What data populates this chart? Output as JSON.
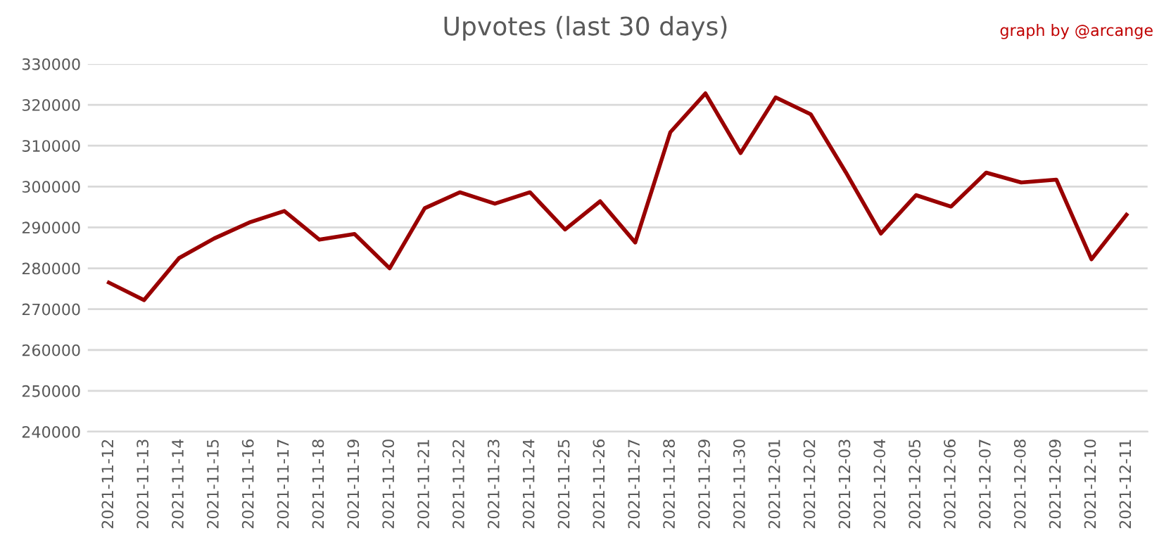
{
  "chart_data": {
    "type": "line",
    "title": "Upvotes (last 30 days)",
    "annotations": [
      "graph by @arcange"
    ],
    "categories": [
      "2021-11-12",
      "2021-11-13",
      "2021-11-14",
      "2021-11-15",
      "2021-11-16",
      "2021-11-17",
      "2021-11-18",
      "2021-11-19",
      "2021-11-20",
      "2021-11-21",
      "2021-11-22",
      "2021-11-23",
      "2021-11-24",
      "2021-11-25",
      "2021-11-26",
      "2021-11-27",
      "2021-11-28",
      "2021-11-29",
      "2021-11-30",
      "2021-12-01",
      "2021-12-02",
      "2021-12-03",
      "2021-12-04",
      "2021-12-05",
      "2021-12-06",
      "2021-12-07",
      "2021-12-08",
      "2021-12-09",
      "2021-12-10",
      "2021-12-11"
    ],
    "series": [
      {
        "color": "#990000",
        "values": [
          276500,
          272200,
          282500,
          287300,
          291200,
          294000,
          287000,
          288400,
          280000,
          294700,
          298600,
          295800,
          298600,
          289500,
          296400,
          286300,
          313300,
          322800,
          308200,
          321800,
          317700,
          303500,
          288500,
          297900,
          295100,
          303400,
          301000,
          301700,
          282200,
          293100
        ]
      }
    ],
    "ylim": [
      240000,
      330000
    ],
    "yticks": [
      240000,
      250000,
      260000,
      270000,
      280000,
      290000,
      300000,
      310000,
      320000,
      330000
    ],
    "grid": "y",
    "legend": false,
    "marker": "none",
    "line_style": "solid"
  }
}
